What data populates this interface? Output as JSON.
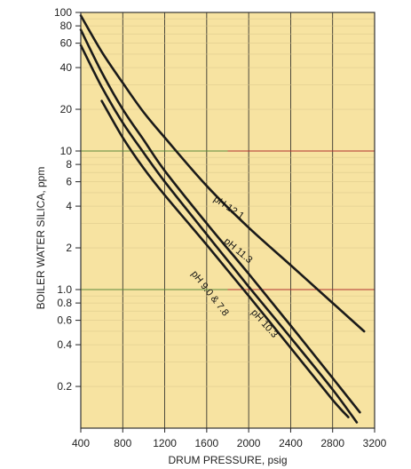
{
  "chart_data": {
    "type": "line",
    "xlabel": "DRUM PRESSURE, psig",
    "ylabel": "BOILER WATER SILICA, ppm",
    "xlim": [
      400,
      3200
    ],
    "ylim": [
      0.1,
      100
    ],
    "y_scale": "log",
    "grid": true,
    "background_color": "#f7e3a1",
    "x_ticks": [
      400,
      800,
      1200,
      1600,
      2000,
      2400,
      2800,
      3200
    ],
    "x_tick_labels": [
      "400",
      "800",
      "1200",
      "1600",
      "2000",
      "2400",
      "2800",
      "3200"
    ],
    "y_ticks": [
      100,
      80,
      60,
      40,
      20,
      10,
      8,
      6,
      4,
      2,
      1.0,
      0.8,
      0.6,
      0.4,
      0.2
    ],
    "y_tick_labels": [
      "100",
      "80",
      "60",
      "40",
      "20",
      "10",
      "8",
      "6",
      "4",
      "2",
      "1.0",
      "0.8",
      "0.6",
      "0.4",
      "0.2"
    ],
    "series": [
      {
        "name": "pH 12.1",
        "color": "#1a1a1a",
        "x": [
          400,
          600,
          800,
          1000,
          1200,
          1600,
          2000,
          2400,
          2800,
          3100
        ],
        "y": [
          95,
          52,
          31,
          19,
          12.5,
          5.6,
          2.8,
          1.5,
          0.8,
          0.5
        ]
      },
      {
        "name": "pH 11.3",
        "color": "#1a1a1a",
        "x": [
          400,
          600,
          800,
          1000,
          1200,
          1600,
          2000,
          2400,
          2800,
          3060
        ],
        "y": [
          75,
          37,
          20,
          12,
          7.2,
          3.0,
          1.3,
          0.55,
          0.23,
          0.13
        ]
      },
      {
        "name": "pH 10.3",
        "color": "#1a1a1a",
        "x": [
          400,
          600,
          800,
          1000,
          1200,
          1600,
          2000,
          2400,
          2800,
          3030
        ],
        "y": [
          58,
          29,
          16,
          9.7,
          6.0,
          2.5,
          1.05,
          0.45,
          0.19,
          0.11
        ]
      },
      {
        "name": "pH 9.0 & 7.8",
        "color": "#1a1a1a",
        "x": [
          600,
          800,
          1000,
          1200,
          1600,
          2000,
          2400,
          2800,
          2950
        ],
        "y": [
          23,
          12.5,
          7.5,
          4.8,
          2.1,
          0.9,
          0.38,
          0.16,
          0.12
        ]
      }
    ],
    "curve_labels": [
      {
        "text": "pH 12.1",
        "x": 1660,
        "y": 4.4
      },
      {
        "text": "pH 11.3",
        "x": 1760,
        "y": 2.2
      },
      {
        "text": "pH 10.3",
        "x": 2020,
        "y": 0.68
      },
      {
        "text": "pH 9.0 & 7.8",
        "x": 1450,
        "y": 1.3
      }
    ]
  }
}
